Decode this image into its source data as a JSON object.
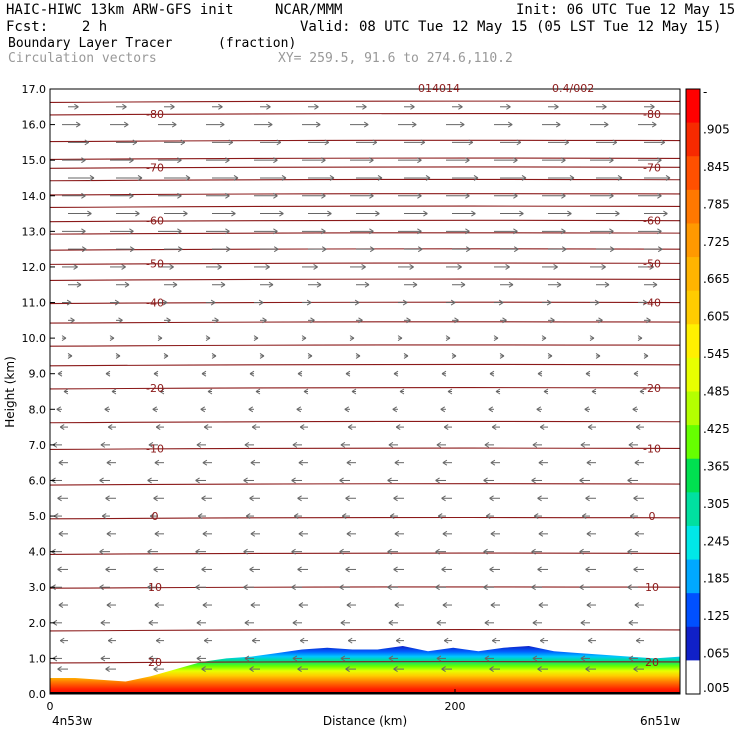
{
  "header": {
    "title_left": "HAIC-HIWC 13km ARW-GFS init",
    "org": "NCAR/MMM",
    "init": "Init: 06 UTC Tue 12 May 15",
    "fcst": "Fcst:    2 h",
    "valid": "Valid: 08 UTC Tue 12 May 15 (05 LST Tue 12 May 15)",
    "field": "Boundary Layer Tracer",
    "units": "(fraction)",
    "vectors": "Circulation vectors",
    "xy": "XY= 259.5, 91.6 to 274.6,110.2",
    "top_label_1": "014014",
    "top_label_2": "0.4/002"
  },
  "chart_data": {
    "type": "heatmap",
    "ylabel": "Height (km)",
    "xlabel": "Distance (km)",
    "ylim": [
      0,
      17
    ],
    "y_ticks": [
      "0.0",
      "1.0",
      "2.0",
      "3.0",
      "4.0",
      "5.0",
      "6.0",
      "7.0",
      "8.0",
      "9.0",
      "10.0",
      "11.0",
      "12.0",
      "13.0",
      "14.0",
      "15.0",
      "16.0",
      "17.0"
    ],
    "x_ticks": [
      "0",
      "200"
    ],
    "x_start_label": "4n53w",
    "x_end_label": "6n51w",
    "colorbar_labels": [
      "-",
      ".905",
      ".845",
      ".785",
      ".725",
      ".665",
      ".605",
      ".545",
      ".485",
      ".425",
      ".365",
      ".305",
      ".245",
      ".185",
      ".125",
      ".065",
      ".005"
    ],
    "colorbar_colors": [
      "#ff0000",
      "#f72a00",
      "#ff5000",
      "#ff7800",
      "#ff9900",
      "#ffb400",
      "#ffcc00",
      "#fff000",
      "#e8ff00",
      "#b4ff00",
      "#66ff00",
      "#00e050",
      "#00e0a0",
      "#00e8e8",
      "#00a8ff",
      "#0050ff",
      "#1020c8",
      "#ffffff"
    ],
    "contour_labels": [
      {
        "text": "-80",
        "y": 16.3
      },
      {
        "text": "-70",
        "y": 14.8
      },
      {
        "text": "-60",
        "y": 13.3
      },
      {
        "text": "-50",
        "y": 12.1
      },
      {
        "text": "-40",
        "y": 11.0
      },
      {
        "text": "-20",
        "y": 8.6
      },
      {
        "text": "-10",
        "y": 6.9
      },
      {
        "text": "0",
        "y": 5.0
      },
      {
        "text": "10",
        "y": 3.0
      },
      {
        "text": "20",
        "y": 0.9
      }
    ],
    "isotherm_heights": [
      16.65,
      16.3,
      15.55,
      15.05,
      14.8,
      14.45,
      14.05,
      13.7,
      13.3,
      12.95,
      12.5,
      12.1,
      11.65,
      11.0,
      10.45,
      9.8,
      9.25,
      8.6,
      7.65,
      6.9,
      5.9,
      4.95,
      3.95,
      3.0,
      1.8,
      0.9
    ],
    "terrain_height_km": [
      0.3,
      0.3,
      0.25,
      0.22,
      0.28,
      0.4,
      0.55,
      0.6,
      0.65,
      0.7,
      0.72,
      0.74,
      0.75,
      0.76,
      0.77,
      0.77,
      0.78,
      0.78,
      0.78,
      0.78,
      0.79,
      0.8,
      0.8,
      0.8,
      0.8,
      0.8
    ],
    "tracer_top_km": [
      0.45,
      0.45,
      0.4,
      0.35,
      0.5,
      0.7,
      0.9,
      1.0,
      1.05,
      1.15,
      1.25,
      1.3,
      1.25,
      1.25,
      1.35,
      1.2,
      1.3,
      1.2,
      1.3,
      1.35,
      1.2,
      1.15,
      1.1,
      1.05,
      1.0,
      1.05
    ],
    "wind_rows_km": [
      16.5,
      16.0,
      15.5,
      15.0,
      14.5,
      14.0,
      13.5,
      13.0,
      12.5,
      12.0,
      11.5,
      11.0,
      10.5,
      10.0,
      9.5,
      9.0,
      8.5,
      8.0,
      7.5,
      7.0,
      6.5,
      6.0,
      5.5,
      5.0,
      4.5,
      4.0,
      3.5,
      3.0,
      2.5,
      2.0,
      1.5,
      1.0,
      0.7
    ],
    "wind_u": [
      0.4,
      0.7,
      0.8,
      0.9,
      1.0,
      0.9,
      0.9,
      0.9,
      0.7,
      0.6,
      0.5,
      0.35,
      0.25,
      0.1,
      0.05,
      -0.1,
      -0.15,
      -0.2,
      -0.3,
      -0.35,
      -0.35,
      -0.4,
      -0.4,
      -0.3,
      -0.35,
      -0.4,
      -0.4,
      -0.4,
      -0.35,
      -0.35,
      -0.3,
      -0.35,
      -0.4
    ]
  }
}
